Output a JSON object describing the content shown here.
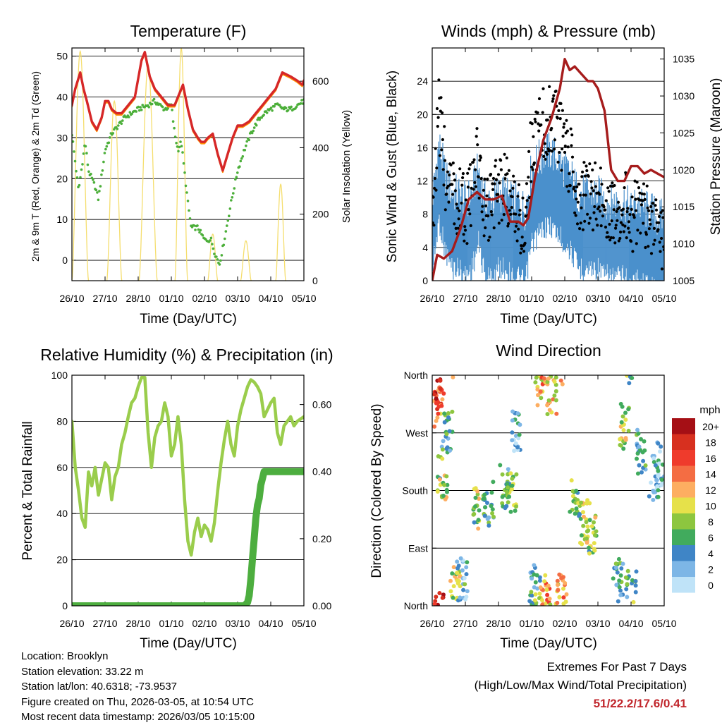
{
  "colors": {
    "temp2m": "#d62728",
    "temp9m": "#ff8c00",
    "dewpoint": "#4caf3a",
    "solar": "#f5de6e",
    "wind": "#4a90cc",
    "gust": "#000000",
    "pressure": "#a61c1c",
    "rh": "#9acd4c",
    "precip": "#4dae3f",
    "extreme_text": "#c1272d"
  },
  "chart_data": [
    {
      "id": "temperature",
      "type": "line",
      "title": "Temperature (F)",
      "xlabel": "Time (Day/UTC)",
      "ylabel": "2m & 9m T (Red, Orange) & 2m Td (Green)",
      "ylabel_right": "Solar Insolation (Yellow)",
      "x_ticks": [
        "26/10",
        "27/10",
        "28/10",
        "01/10",
        "02/10",
        "03/10",
        "04/10",
        "05/10"
      ],
      "xlim": [
        0,
        7
      ],
      "ylim": [
        -5,
        52
      ],
      "yticks": [
        0,
        10,
        20,
        30,
        40,
        50
      ],
      "ylim_right": [
        0,
        700
      ],
      "yticks_right": [
        0,
        200,
        400,
        600
      ],
      "grid": true,
      "series": [
        {
          "name": "2m T",
          "color": "#d62728",
          "style": "line",
          "x": [
            0,
            0.1,
            0.25,
            0.35,
            0.45,
            0.6,
            0.75,
            0.9,
            1.0,
            1.1,
            1.2,
            1.35,
            1.5,
            1.7,
            1.9,
            2.1,
            2.2,
            2.35,
            2.5,
            2.7,
            2.9,
            3.1,
            3.2,
            3.35,
            3.5,
            3.65,
            3.8,
            3.9,
            4.0,
            4.1,
            4.25,
            4.4,
            4.55,
            4.7,
            4.85,
            5.0,
            5.15,
            5.35,
            5.55,
            5.75,
            5.95,
            6.15,
            6.35,
            6.6,
            6.8,
            6.95,
            7.0
          ],
          "values": [
            38,
            42,
            46,
            42,
            39,
            34,
            32,
            35,
            39,
            39,
            37,
            36,
            36,
            38,
            40,
            49,
            51,
            45,
            42,
            40,
            38,
            38,
            40,
            43,
            37,
            32,
            30,
            29,
            29,
            30,
            31,
            26,
            22,
            26,
            30,
            33,
            33,
            34,
            36,
            38,
            40,
            42,
            46,
            45,
            44,
            43,
            44
          ]
        },
        {
          "name": "2m Td",
          "color": "#4caf3a",
          "style": "dots",
          "x": [
            0,
            0.1,
            0.2,
            0.3,
            0.4,
            0.5,
            0.7,
            0.8,
            0.9,
            1.0,
            1.2,
            1.4,
            1.6,
            1.8,
            2.0,
            2.3,
            2.5,
            2.8,
            3.0,
            3.1,
            3.2,
            3.3,
            3.5,
            3.6,
            3.8,
            4.0,
            4.2,
            4.3,
            4.45,
            4.6,
            4.8,
            5.0,
            5.2,
            5.4,
            5.6,
            5.8,
            6.0,
            6.2,
            6.4,
            6.6,
            6.8,
            7.0
          ],
          "values": [
            31,
            24,
            17,
            23,
            29,
            22,
            18,
            15,
            21,
            27,
            31,
            33,
            35,
            36,
            37,
            38,
            39,
            37,
            38,
            31,
            27,
            29,
            14,
            8,
            8,
            5,
            5,
            2,
            -1,
            5,
            14,
            22,
            27,
            31,
            34,
            36,
            37,
            38,
            37,
            37,
            38,
            39
          ]
        },
        {
          "name": "Solar Insolation",
          "color": "#f5de6e",
          "style": "pulses",
          "axis": "right",
          "pulses": [
            {
              "center": 0.25,
              "width": 0.5,
              "peak": 690
            },
            {
              "center": 1.28,
              "width": 0.45,
              "peak": 540
            },
            {
              "center": 2.3,
              "width": 0.55,
              "peak": 650
            },
            {
              "center": 3.3,
              "width": 0.38,
              "peak": 700
            },
            {
              "center": 4.25,
              "width": 0.3,
              "peak": 140
            },
            {
              "center": 5.25,
              "width": 0.32,
              "peak": 120
            },
            {
              "center": 6.3,
              "width": 0.3,
              "peak": 290
            }
          ]
        }
      ]
    },
    {
      "id": "winds",
      "type": "scatter",
      "title": "Winds (mph) & Pressure (mb)",
      "xlabel": "Time (Day/UTC)",
      "ylabel": "Sonic Wind & Gust (Blue, Black)",
      "ylabel_right": "Station Pressure (Maroon)",
      "x_ticks": [
        "26/10",
        "27/10",
        "28/10",
        "01/10",
        "02/10",
        "03/10",
        "04/10",
        "05/10"
      ],
      "xlim": [
        0,
        7
      ],
      "ylim": [
        0,
        28
      ],
      "yticks": [
        0,
        4,
        8,
        12,
        16,
        20,
        24
      ],
      "ylim_right": [
        1005,
        1036.5
      ],
      "yticks_right": [
        1005,
        1010,
        1015,
        1020,
        1025,
        1030,
        1035
      ],
      "grid": true,
      "series": [
        {
          "name": "Sonic Wind",
          "color": "#4a90cc",
          "style": "band",
          "x": [
            0,
            0.2,
            0.4,
            0.6,
            0.8,
            1.0,
            1.2,
            1.4,
            1.6,
            1.8,
            2.0,
            2.2,
            2.4,
            2.6,
            2.8,
            3.0,
            3.2,
            3.4,
            3.6,
            3.8,
            4.0,
            4.2,
            4.4,
            4.6,
            4.8,
            5.0,
            5.2,
            5.4,
            5.6,
            5.8,
            6.0,
            6.2,
            6.4,
            6.6,
            6.8,
            7.0
          ],
          "values": [
            5,
            12,
            8,
            6,
            6,
            5,
            6,
            9,
            5,
            5,
            6,
            6,
            5,
            5,
            4,
            9,
            10,
            11,
            11,
            10,
            9,
            8,
            6,
            6,
            6,
            6,
            5,
            5,
            5,
            5,
            4,
            5,
            4,
            4,
            3,
            3
          ]
        },
        {
          "name": "Gust",
          "color": "#000000",
          "style": "dots",
          "x": [
            0,
            0.2,
            0.4,
            0.6,
            0.8,
            1.0,
            1.2,
            1.4,
            1.6,
            1.8,
            2.0,
            2.2,
            2.4,
            2.6,
            2.8,
            3.0,
            3.2,
            3.4,
            3.6,
            3.8,
            4.0,
            4.2,
            4.4,
            4.6,
            4.8,
            5.0,
            5.2,
            5.4,
            5.6,
            5.8,
            6.0,
            6.2,
            6.4,
            6.6,
            6.8,
            7.0
          ],
          "values": [
            8,
            20,
            13,
            10,
            10,
            8,
            11,
            15,
            8,
            9,
            11,
            11,
            9,
            8,
            7,
            16,
            18,
            19,
            20,
            18,
            16,
            14,
            11,
            10,
            10,
            10,
            9,
            8,
            9,
            9,
            8,
            8,
            8,
            7,
            6,
            5
          ]
        },
        {
          "name": "Station Pressure",
          "color": "#a61c1c",
          "style": "line",
          "axis": "right",
          "x": [
            0,
            0.15,
            0.35,
            0.6,
            0.85,
            1.1,
            1.35,
            1.6,
            1.85,
            2.1,
            2.35,
            2.6,
            2.75,
            2.9,
            3.1,
            3.35,
            3.6,
            3.85,
            4.0,
            4.15,
            4.3,
            4.5,
            4.7,
            4.85,
            5.0,
            5.2,
            5.4,
            5.6,
            5.8,
            6.0,
            6.2,
            6.4,
            6.6,
            6.8,
            7.0
          ],
          "values": [
            1005,
            1008.5,
            1008,
            1009,
            1012,
            1016,
            1017,
            1016,
            1016,
            1016.5,
            1013,
            1013,
            1012.5,
            1013.5,
            1019,
            1024,
            1027,
            1031,
            1035,
            1033.5,
            1034,
            1033,
            1032,
            1032,
            1031,
            1028,
            1020,
            1018.5,
            1018.5,
            1020.5,
            1020.5,
            1019.5,
            1020,
            1019.5,
            1019
          ]
        }
      ]
    },
    {
      "id": "humidity",
      "type": "line",
      "title": "Relative Humidity (%) & Precipitation (in)",
      "xlabel": "Time (Day/UTC)",
      "ylabel": "Percent & Total Rainfall",
      "x_ticks": [
        "26/10",
        "27/10",
        "28/10",
        "01/10",
        "02/10",
        "03/10",
        "04/10",
        "05/10"
      ],
      "xlim": [
        0,
        7
      ],
      "ylim": [
        0,
        100
      ],
      "yticks": [
        0,
        20,
        40,
        60,
        80,
        100
      ],
      "ylim_right": [
        0,
        0.6875
      ],
      "yticks_right": [
        0,
        0.2,
        0.4,
        0.6
      ],
      "yticklabels_right": [
        "0.00",
        "0.20",
        "0.40",
        "0.60"
      ],
      "grid": true,
      "series": [
        {
          "name": "Relative Humidity",
          "color": "#9acd4c",
          "style": "line",
          "x": [
            0,
            0.1,
            0.2,
            0.3,
            0.4,
            0.5,
            0.6,
            0.7,
            0.8,
            0.9,
            1.0,
            1.1,
            1.2,
            1.3,
            1.4,
            1.5,
            1.6,
            1.7,
            1.8,
            1.9,
            2.0,
            2.1,
            2.2,
            2.3,
            2.4,
            2.5,
            2.6,
            2.7,
            2.8,
            2.9,
            3.0,
            3.1,
            3.2,
            3.3,
            3.4,
            3.5,
            3.6,
            3.7,
            3.8,
            3.9,
            4.0,
            4.1,
            4.2,
            4.3,
            4.4,
            4.5,
            4.6,
            4.7,
            4.8,
            4.9,
            5.0,
            5.1,
            5.2,
            5.3,
            5.4,
            5.5,
            5.6,
            5.7,
            5.8,
            5.9,
            6.0,
            6.1,
            6.2,
            6.3,
            6.4,
            6.5,
            6.6,
            6.7,
            6.8,
            6.9,
            7.0
          ],
          "values": [
            80,
            60,
            50,
            38,
            34,
            58,
            52,
            60,
            48,
            55,
            62,
            60,
            46,
            56,
            60,
            70,
            75,
            82,
            88,
            90,
            95,
            99,
            99,
            75,
            60,
            73,
            78,
            80,
            88,
            82,
            65,
            70,
            82,
            70,
            46,
            28,
            22,
            32,
            38,
            30,
            35,
            33,
            28,
            36,
            50,
            62,
            72,
            80,
            70,
            65,
            78,
            85,
            90,
            95,
            98,
            97,
            95,
            92,
            82,
            85,
            88,
            90,
            75,
            70,
            78,
            80,
            82,
            78,
            80,
            81,
            82
          ]
        },
        {
          "name": "Total Precipitation",
          "color": "#4dae3f",
          "style": "line",
          "axis": "right",
          "x": [
            0,
            3.3,
            5.2,
            5.3,
            5.35,
            5.4,
            5.45,
            5.5,
            5.55,
            5.6,
            5.65,
            5.7,
            5.75,
            5.8,
            5.85,
            7.0
          ],
          "values": [
            0,
            0,
            0,
            0.01,
            0.03,
            0.08,
            0.14,
            0.2,
            0.26,
            0.3,
            0.32,
            0.36,
            0.38,
            0.4,
            0.4,
            0.4
          ]
        }
      ]
    },
    {
      "id": "direction",
      "type": "scatter",
      "title": "Wind Direction",
      "xlabel": "Time (Day/UTC)",
      "ylabel": "Direction (Colored By Speed)",
      "x_ticks": [
        "26/10",
        "27/10",
        "28/10",
        "01/10",
        "02/10",
        "03/10",
        "04/10",
        "05/10"
      ],
      "xlim": [
        0,
        7
      ],
      "ylim": [
        0,
        360
      ],
      "yticks": [
        0,
        90,
        180,
        270,
        360
      ],
      "yticklabels": [
        "North",
        "East",
        "South",
        "West",
        "North"
      ],
      "grid": true,
      "legend": {
        "title": "mph",
        "labels": [
          "20+",
          "18",
          "16",
          "14",
          "12",
          "10",
          "8",
          "6",
          "4",
          "2",
          "0"
        ],
        "colors": [
          "#a50f15",
          "#d7301f",
          "#ef3b2c",
          "#f46d43",
          "#fdae61",
          "#e6e14a",
          "#8dc63f",
          "#41ab5d",
          "#3f85c6",
          "#7db6e6",
          "#bfe3f8"
        ]
      },
      "clusters": [
        {
          "x": 0.15,
          "dir": 310,
          "speed": 14
        },
        {
          "x": 0.2,
          "dir": 345,
          "speed": 18
        },
        {
          "x": 0.3,
          "dir": 200,
          "speed": 8
        },
        {
          "x": 0.45,
          "dir": 270,
          "speed": 5
        },
        {
          "x": 0.7,
          "dir": 30,
          "speed": 9
        },
        {
          "x": 0.9,
          "dir": 40,
          "speed": 4
        },
        {
          "x": 1.4,
          "dir": 150,
          "speed": 8
        },
        {
          "x": 1.7,
          "dir": 160,
          "speed": 5
        },
        {
          "x": 2.2,
          "dir": 185,
          "speed": 6
        },
        {
          "x": 2.4,
          "dir": 175,
          "speed": 7
        },
        {
          "x": 2.5,
          "dir": 270,
          "speed": 3
        },
        {
          "x": 3.1,
          "dir": 30,
          "speed": 5
        },
        {
          "x": 3.25,
          "dir": 345,
          "speed": 10
        },
        {
          "x": 3.4,
          "dir": 15,
          "speed": 13
        },
        {
          "x": 3.6,
          "dir": 330,
          "speed": 10
        },
        {
          "x": 3.9,
          "dir": 15,
          "speed": 12
        },
        {
          "x": 4.3,
          "dir": 170,
          "speed": 7
        },
        {
          "x": 4.6,
          "dir": 130,
          "speed": 9
        },
        {
          "x": 4.8,
          "dir": 110,
          "speed": 8
        },
        {
          "x": 5.6,
          "dir": 40,
          "speed": 5
        },
        {
          "x": 5.8,
          "dir": 280,
          "speed": 9
        },
        {
          "x": 6.0,
          "dir": 20,
          "speed": 6
        },
        {
          "x": 6.3,
          "dir": 240,
          "speed": 4
        },
        {
          "x": 6.7,
          "dir": 200,
          "speed": 3
        },
        {
          "x": 6.9,
          "dir": 220,
          "speed": 2
        }
      ]
    }
  ],
  "station_info": {
    "location": "Location: Brooklyn",
    "elevation": "Station elevation: 33.22 m",
    "latlon": "Station lat/lon: 40.6318; -73.9537",
    "created": "Figure created on Thu, 2026-03-05, at 10:54 UTC",
    "recent": "Most recent data timestamp: 2026/03/05 10:15:00"
  },
  "extremes": {
    "title": "Extremes For Past 7 Days",
    "subtitle": "(High/Low/Max Wind/Total Precipitation)",
    "values": "51/22.2/17.6/0.41"
  }
}
